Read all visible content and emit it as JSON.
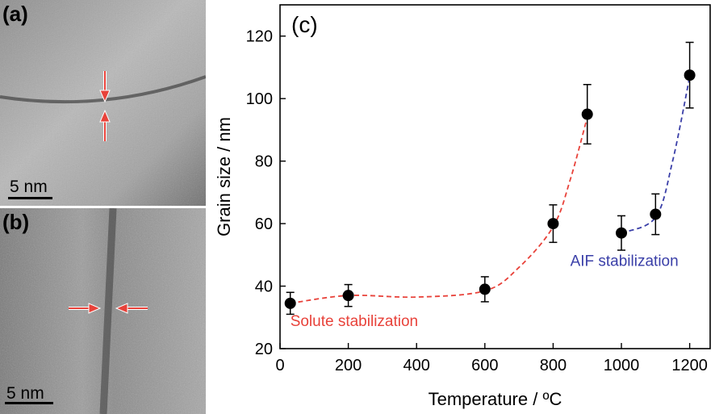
{
  "panels": {
    "a": {
      "tag": "(a)",
      "scale_bar": "5 nm"
    },
    "b": {
      "tag": "(b)",
      "scale_bar": "5 nm"
    }
  },
  "chart_data": {
    "type": "scatter",
    "panel_label": "(c)",
    "xlabel": "Temperature / ºC",
    "ylabel": "Grain size / nm",
    "xlim": [
      0,
      1260
    ],
    "ylim": [
      20,
      130
    ],
    "xticks": [
      0,
      200,
      400,
      600,
      800,
      1000,
      1200
    ],
    "yticks": [
      20,
      40,
      60,
      80,
      100,
      120
    ],
    "series": [
      {
        "x": [
          30,
          200,
          600,
          800,
          900
        ],
        "y": [
          34.5,
          37,
          39,
          60,
          95
        ],
        "yerr": [
          3.5,
          3.5,
          4,
          6,
          9.5
        ]
      },
      {
        "x": [
          1000,
          1100,
          1200
        ],
        "y": [
          57,
          63,
          107.5
        ],
        "yerr": [
          5.5,
          6.5,
          10.5
        ]
      }
    ],
    "curves": [
      {
        "label": "Solute stabilization",
        "color": "#e8423a",
        "x": [
          30,
          200,
          400,
          600,
          700,
          800,
          850,
          900
        ],
        "y": [
          34.5,
          37,
          36.5,
          38.5,
          46,
          59,
          74,
          94
        ]
      },
      {
        "label": "AIF stabilization",
        "color": "#3a3fa8",
        "x": [
          1000,
          1100,
          1150,
          1200
        ],
        "y": [
          57,
          62,
          80,
          107
        ]
      }
    ],
    "marker_color": "#000000"
  }
}
